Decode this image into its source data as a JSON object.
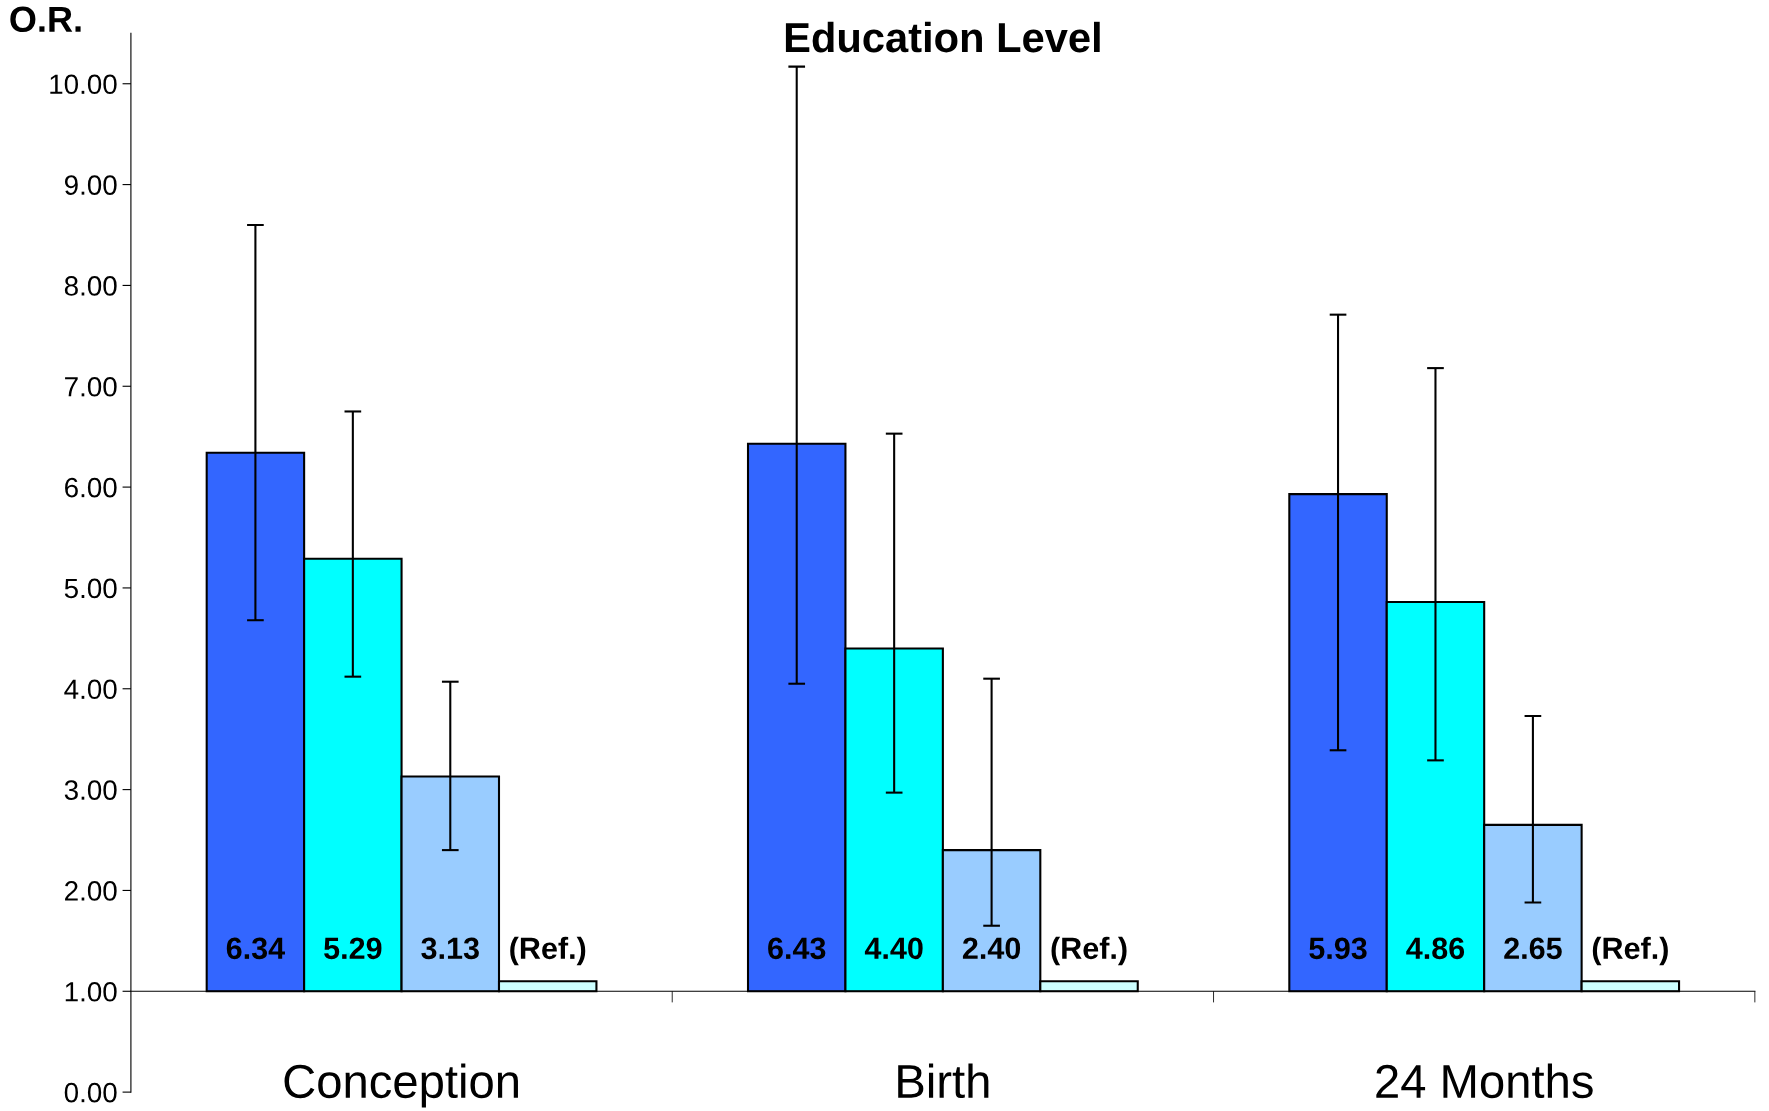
{
  "chart_data": {
    "type": "bar",
    "title": "Education Level",
    "ylabel": "O.R.",
    "categories": [
      "Conception",
      "Birth",
      "24 Months"
    ],
    "series": [
      {
        "color": "#3366ff",
        "base": [
          1,
          1,
          1
        ],
        "values": [
          5.34,
          5.43,
          4.93
        ],
        "value_labels": [
          "6.34",
          "6.43",
          "5.93"
        ],
        "errors": [
          [
            4.68,
            8.6
          ],
          [
            4.05,
            10.17
          ],
          [
            3.39,
            7.71
          ]
        ]
      },
      {
        "color": "#00ffff",
        "base": [
          1,
          1,
          1
        ],
        "values": [
          4.29,
          3.4,
          3.86
        ],
        "value_labels": [
          "5.29",
          "4.40",
          "4.86"
        ],
        "errors": [
          [
            4.12,
            6.75
          ],
          [
            2.97,
            6.53
          ],
          [
            3.29,
            7.18
          ]
        ]
      },
      {
        "color": "#99ccff",
        "base": [
          1,
          1,
          1
        ],
        "values": [
          2.13,
          1.4,
          1.65
        ],
        "value_labels": [
          "3.13",
          "2.40",
          "2.65"
        ],
        "errors": [
          [
            2.4,
            4.07
          ],
          [
            1.65,
            4.1
          ],
          [
            1.88,
            3.73
          ]
        ]
      },
      {
        "color": "#ccffff",
        "base": [
          1,
          1,
          1
        ],
        "values": [
          0.1,
          0.1,
          0.1
        ],
        "value_labels": [
          "(Ref.)",
          "(Ref.)",
          "(Ref.)"
        ]
      }
    ],
    "ylim": [
      0,
      10.5
    ],
    "yticks": [
      {
        "value": 0,
        "label": "0.00"
      },
      {
        "value": 1,
        "label": "1.00"
      },
      {
        "value": 2,
        "label": "2.00"
      },
      {
        "value": 3,
        "label": "3.00"
      },
      {
        "value": 4,
        "label": "4.00"
      },
      {
        "value": 5,
        "label": "5.00"
      },
      {
        "value": 6,
        "label": "6.00"
      },
      {
        "value": 7,
        "label": "7.00"
      },
      {
        "value": 8,
        "label": "8.00"
      },
      {
        "value": 9,
        "label": "9.00"
      },
      {
        "value": 10,
        "label": "10.00"
      }
    ],
    "grid": false,
    "legend": false
  }
}
